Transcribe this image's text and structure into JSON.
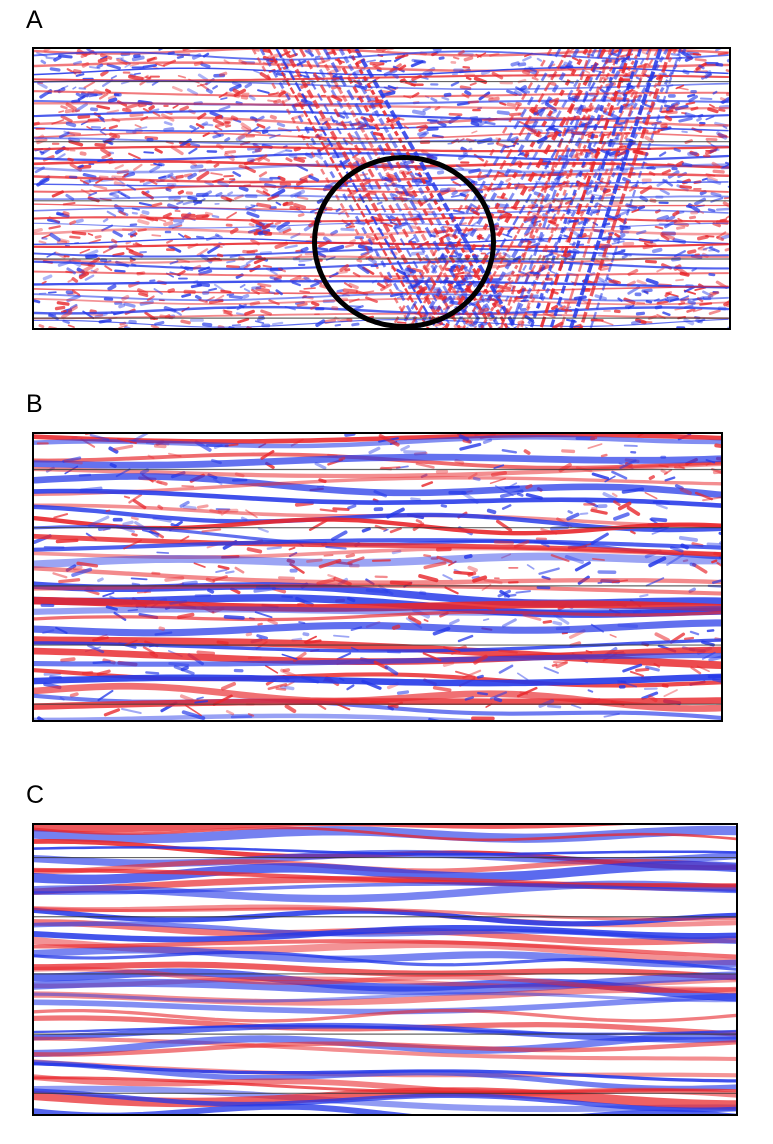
{
  "figure": {
    "panels": [
      {
        "label": "A",
        "style": "noisy-with-crossing-diagonal-events",
        "has_circle_marker": true
      },
      {
        "label": "B",
        "style": "partially-denoised-layered-reflectors",
        "has_circle_marker": false
      },
      {
        "label": "C",
        "style": "smooth-layered-reflectors",
        "has_circle_marker": false
      }
    ],
    "colors": {
      "positive": "#e8262b",
      "negative": "#2438e8",
      "background": "#ffffff",
      "horizon_line": "#333333",
      "circle": "#000000"
    }
  }
}
